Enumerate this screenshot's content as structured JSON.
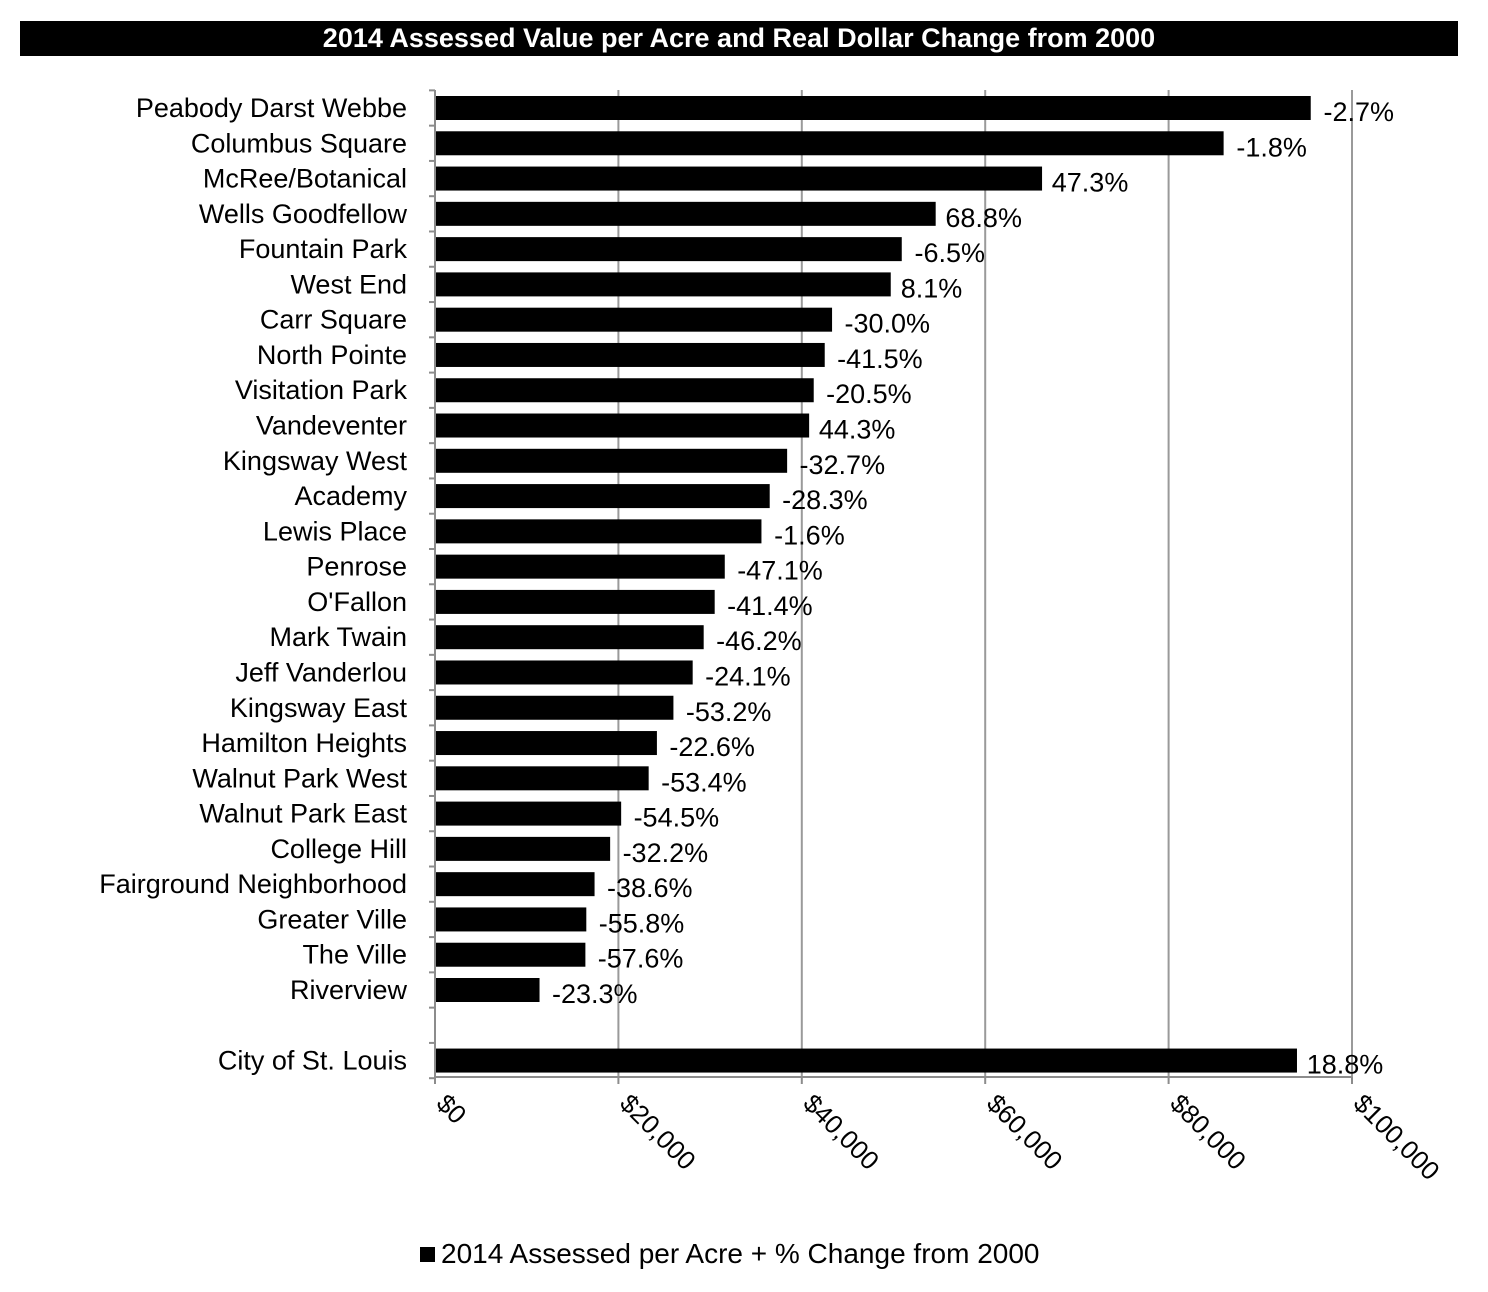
{
  "chart_data": {
    "type": "bar",
    "orientation": "horizontal",
    "title": "2014 Assessed Value per Acre and Real Dollar Change from 2000",
    "categories": [
      "Peabody Darst Webbe",
      "Columbus Square",
      "McRee/Botanical",
      "Wells Goodfellow",
      "Fountain Park",
      "West End",
      "Carr Square",
      "North Pointe",
      "Visitation Park",
      "Vandeventer",
      "Kingsway West",
      "Academy",
      "Lewis Place",
      "Penrose",
      "O'Fallon",
      "Mark Twain",
      "Jeff Vanderlou",
      "Kingsway East",
      "Hamilton Heights",
      "Walnut Park West",
      "Walnut Park East",
      "College Hill",
      "Fairground Neighborhood",
      "Greater Ville",
      "The Ville",
      "Riverview",
      "",
      "City of St. Louis"
    ],
    "series": [
      {
        "name": "2014 Assessed per Acre + % Change from 2000",
        "color": "#000000",
        "values": [
          95500,
          86000,
          66200,
          54600,
          50900,
          49700,
          43300,
          42500,
          41300,
          40800,
          38400,
          36500,
          35600,
          31600,
          30500,
          29300,
          28100,
          26000,
          24200,
          23300,
          20300,
          19100,
          17400,
          16500,
          16400,
          11400,
          null,
          94000
        ]
      }
    ],
    "data_labels": [
      "-2.7%",
      "-1.8%",
      "47.3%",
      "68.8%",
      "-6.5%",
      "8.1%",
      "-30.0%",
      "-41.5%",
      "-20.5%",
      "44.3%",
      "-32.7%",
      "-28.3%",
      "-1.6%",
      "-47.1%",
      "-41.4%",
      "-46.2%",
      "-24.1%",
      "-53.2%",
      "-22.6%",
      "-53.4%",
      "-54.5%",
      "-32.2%",
      "-38.6%",
      "-55.8%",
      "-57.6%",
      "-23.3%",
      "",
      "18.8%"
    ],
    "x_ticks": [
      0,
      20000,
      40000,
      60000,
      80000,
      100000
    ],
    "x_tick_labels": [
      "$0",
      "$20,000",
      "$40,000",
      "$60,000",
      "$80,000",
      "$100,000"
    ],
    "xlim": [
      0,
      100000
    ],
    "xlabel": "",
    "ylabel": "",
    "grid": "vertical",
    "legend": {
      "position": "bottom",
      "label": "2014 Assessed per Acre + % Change from 2000"
    }
  }
}
